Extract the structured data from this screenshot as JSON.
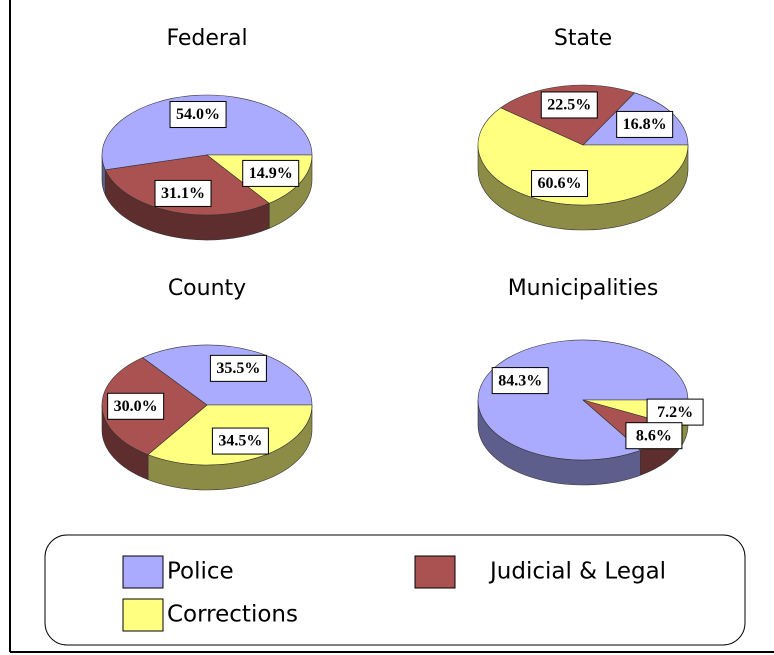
{
  "chart_data": [
    {
      "type": "pie",
      "title": "Federal",
      "categories": [
        "Police",
        "Judicial & Legal",
        "Corrections"
      ],
      "values": [
        54.0,
        31.1,
        14.9
      ],
      "value_labels": [
        "54.0%",
        "31.1%",
        "14.9%"
      ],
      "colors": [
        "#aaaaff",
        "#aa5252",
        "#ffff80"
      ]
    },
    {
      "type": "pie",
      "title": "State",
      "categories": [
        "Police",
        "Judicial & Legal",
        "Corrections"
      ],
      "values": [
        16.8,
        22.5,
        60.6
      ],
      "value_labels": [
        "16.8%",
        "22.5%",
        "60.6%"
      ],
      "colors": [
        "#aaaaff",
        "#aa5252",
        "#ffff80"
      ]
    },
    {
      "type": "pie",
      "title": "County",
      "categories": [
        "Police",
        "Judicial & Legal",
        "Corrections"
      ],
      "values": [
        35.5,
        30.0,
        34.5
      ],
      "value_labels": [
        "35.5%",
        "30.0%",
        "34.5%"
      ],
      "colors": [
        "#aaaaff",
        "#aa5252",
        "#ffff80"
      ]
    },
    {
      "type": "pie",
      "title": "Municipalities",
      "categories": [
        "Police",
        "Judicial & Legal",
        "Corrections"
      ],
      "values": [
        84.3,
        8.6,
        7.2
      ],
      "value_labels": [
        "84.3%",
        "8.6%",
        "7.2%"
      ],
      "colors": [
        "#aaaaff",
        "#aa5252",
        "#ffff80"
      ]
    }
  ]
}
